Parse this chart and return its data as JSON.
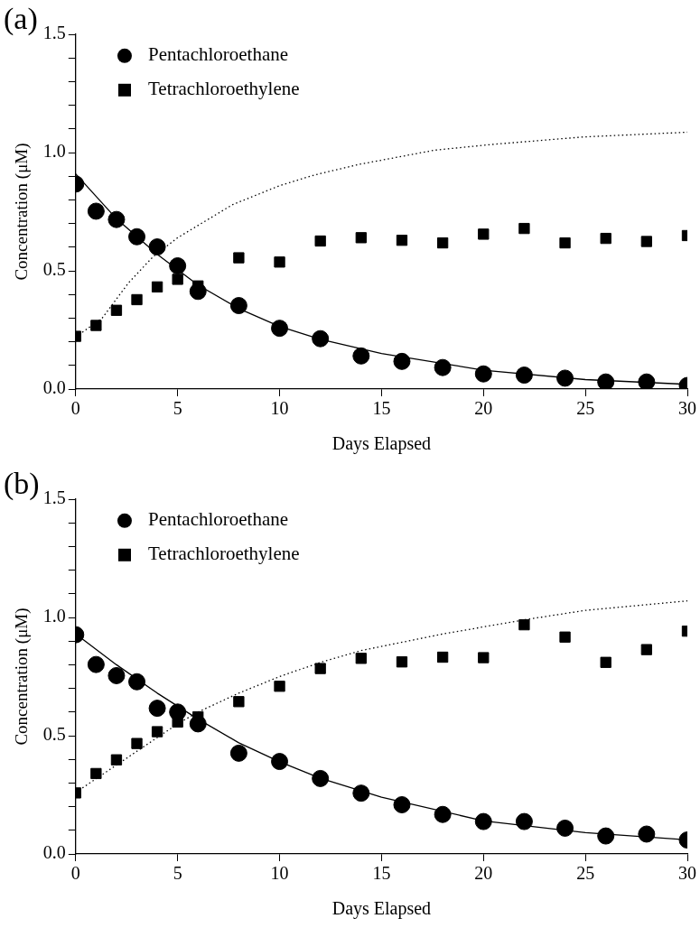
{
  "chart_data": [
    {
      "type": "scatter",
      "title": "(a)",
      "xlabel": "Days Elapsed",
      "ylabel": "Concentration (μM)",
      "xlim": [
        0,
        30
      ],
      "xticks": [
        0,
        5,
        10,
        15,
        20,
        25,
        30
      ],
      "ylim": [
        0,
        1.5
      ],
      "yticks": [
        {
          "value": 0,
          "label": "0.0"
        },
        {
          "value": 0.1,
          "label": null
        },
        {
          "value": 0.2,
          "label": null
        },
        {
          "value": 0.3,
          "label": null
        },
        {
          "value": 0.4,
          "label": null
        },
        {
          "value": 0.5,
          "label": "0.5"
        },
        {
          "value": 0.6,
          "label": null
        },
        {
          "value": 0.7,
          "label": null
        },
        {
          "value": 0.8,
          "label": null
        },
        {
          "value": 0.9,
          "label": null
        },
        {
          "value": 1.0,
          "label": "1.0"
        },
        {
          "value": 1.1,
          "label": null
        },
        {
          "value": 1.2,
          "label": null
        },
        {
          "value": 1.3,
          "label": null
        },
        {
          "value": 1.4,
          "label": null
        },
        {
          "value": 1.5,
          "label": "1.5"
        }
      ],
      "grid": false,
      "legend": "top left",
      "series": [
        {
          "name": "Pentachloroethane",
          "color": "#000000",
          "marker": "circle",
          "x": [
            0,
            1,
            2,
            3,
            4,
            5,
            6,
            8,
            10,
            12,
            14,
            16,
            18,
            20,
            22,
            24,
            26,
            28,
            30
          ],
          "values": [
            0.867,
            0.752,
            0.717,
            0.644,
            0.601,
            0.521,
            0.413,
            0.353,
            0.257,
            0.213,
            0.14,
            0.117,
            0.091,
            0.064,
            0.059,
            0.046,
            0.03,
            0.03,
            0.015
          ]
        },
        {
          "name": "Tetrachloroethylene",
          "color": "#000000",
          "marker": "square",
          "x": [
            0,
            1,
            2,
            3,
            4,
            5,
            6,
            8,
            10,
            12,
            14,
            16,
            18,
            20,
            22,
            24,
            26,
            28,
            30
          ],
          "values": [
            0.223,
            0.269,
            0.333,
            0.378,
            0.432,
            0.464,
            0.436,
            0.555,
            0.537,
            0.626,
            0.64,
            0.629,
            0.618,
            0.655,
            0.679,
            0.618,
            0.637,
            0.624,
            0.649
          ]
        },
        {
          "type": "line",
          "color": "#000000",
          "marker": "none",
          "line_style": "solid",
          "x": [
            0,
            2,
            4,
            6,
            8,
            10,
            12,
            15,
            20,
            25,
            30
          ],
          "values": [
            0.91,
            0.72,
            0.57,
            0.44,
            0.34,
            0.265,
            0.21,
            0.15,
            0.08,
            0.04,
            0.02
          ]
        },
        {
          "type": "line",
          "color": "#000000",
          "marker": "none",
          "line_style": "dotted",
          "x": [
            0,
            1.3,
            2.6,
            3.8,
            5,
            7.7,
            10,
            11.7,
            13.9,
            17.6,
            20.5,
            24.9,
            30
          ],
          "values": [
            0.22,
            0.3,
            0.45,
            0.56,
            0.64,
            0.78,
            0.86,
            0.905,
            0.95,
            1.01,
            1.035,
            1.066,
            1.086
          ]
        }
      ]
    },
    {
      "type": "scatter",
      "title": "(b)",
      "xlabel": "Days Elapsed",
      "ylabel": "Concentration (μM)",
      "xlim": [
        0,
        30
      ],
      "xticks": [
        0,
        5,
        10,
        15,
        20,
        25,
        30
      ],
      "ylim": [
        0,
        1.5
      ],
      "yticks": [
        {
          "value": 0,
          "label": "0.0"
        },
        {
          "value": 0.1,
          "label": null
        },
        {
          "value": 0.2,
          "label": null
        },
        {
          "value": 0.3,
          "label": null
        },
        {
          "value": 0.4,
          "label": null
        },
        {
          "value": 0.5,
          "label": "0.5"
        },
        {
          "value": 0.6,
          "label": null
        },
        {
          "value": 0.7,
          "label": null
        },
        {
          "value": 0.8,
          "label": null
        },
        {
          "value": 0.9,
          "label": null
        },
        {
          "value": 1.0,
          "label": "1.0"
        },
        {
          "value": 1.1,
          "label": null
        },
        {
          "value": 1.2,
          "label": null
        },
        {
          "value": 1.3,
          "label": null
        },
        {
          "value": 1.4,
          "label": null
        },
        {
          "value": 1.5,
          "label": "1.5"
        }
      ],
      "grid": false,
      "legend": "top left",
      "series": [
        {
          "name": "Pentachloroethane",
          "color": "#000000",
          "marker": "circle",
          "x": [
            0,
            1,
            2,
            3,
            4,
            5,
            6,
            8,
            10,
            12,
            14,
            16,
            18,
            20,
            22,
            24,
            26,
            28,
            30
          ],
          "values": [
            0.927,
            0.801,
            0.754,
            0.728,
            0.616,
            0.6,
            0.55,
            0.426,
            0.391,
            0.319,
            0.257,
            0.208,
            0.167,
            0.137,
            0.137,
            0.109,
            0.076,
            0.084,
            0.059
          ]
        },
        {
          "name": "Tetrachloroethylene",
          "color": "#000000",
          "marker": "square",
          "x": [
            0,
            1,
            2,
            3,
            4,
            5,
            6,
            8,
            10,
            12,
            14,
            16,
            18,
            20,
            22,
            24,
            26,
            28,
            30
          ],
          "values": [
            0.258,
            0.34,
            0.398,
            0.467,
            0.517,
            0.558,
            0.58,
            0.644,
            0.709,
            0.784,
            0.827,
            0.812,
            0.832,
            0.83,
            0.969,
            0.917,
            0.81,
            0.864,
            0.942
          ]
        },
        {
          "type": "line",
          "color": "#000000",
          "marker": "none",
          "line_style": "solid",
          "x": [
            0,
            2,
            4,
            6,
            8,
            10,
            12,
            15,
            20,
            25,
            30
          ],
          "values": [
            0.93,
            0.8,
            0.68,
            0.57,
            0.47,
            0.39,
            0.32,
            0.24,
            0.14,
            0.09,
            0.06
          ]
        },
        {
          "type": "line",
          "color": "#000000",
          "marker": "none",
          "line_style": "dotted",
          "x": [
            0,
            5,
            6,
            8,
            10,
            12,
            14,
            18,
            22,
            25,
            30
          ],
          "values": [
            0.26,
            0.55,
            0.6,
            0.68,
            0.75,
            0.81,
            0.86,
            0.93,
            0.99,
            1.03,
            1.07
          ]
        }
      ]
    }
  ]
}
